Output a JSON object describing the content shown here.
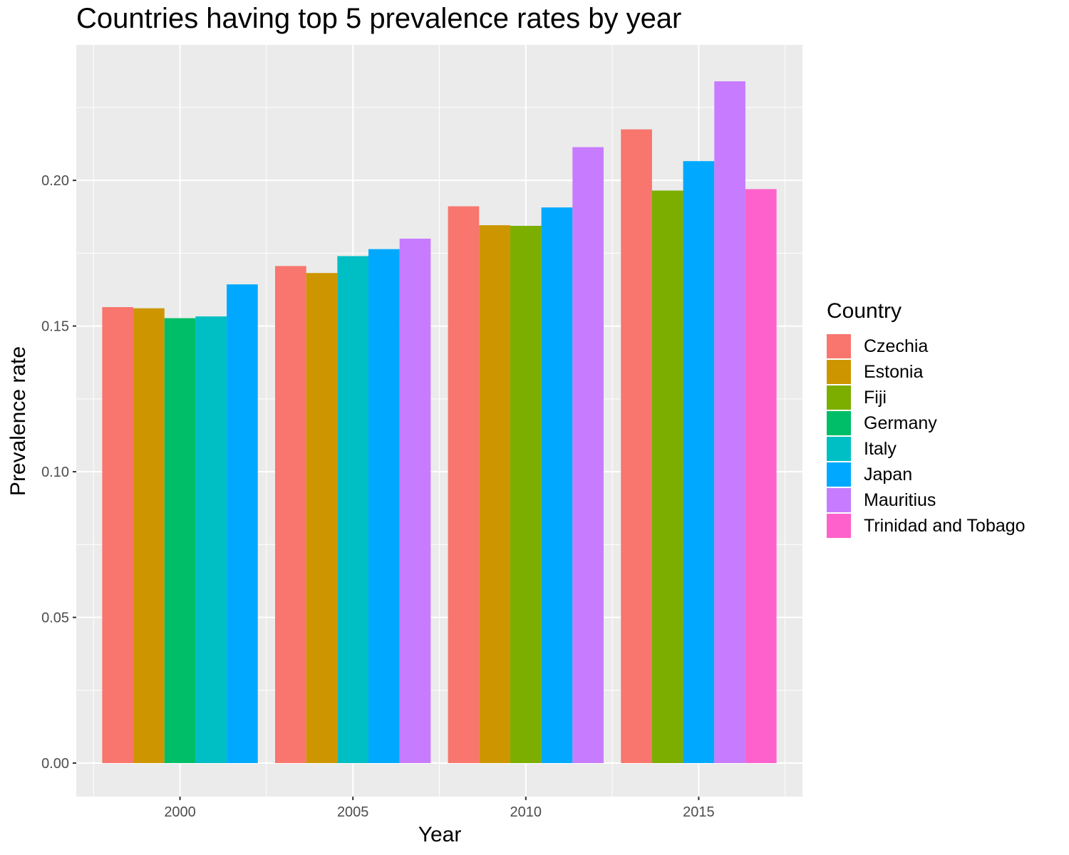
{
  "chart_data": {
    "type": "bar",
    "title": "Countries having top 5 prevalence rates by year",
    "xlabel": "Year",
    "ylabel": "Prevalence rate",
    "ylim": [
      -0.0115,
      0.2465
    ],
    "xlim": [
      1997.0,
      2018.0
    ],
    "y_ticks": [
      "0.00",
      "0.05",
      "0.10",
      "0.15",
      "0.20"
    ],
    "x_ticks": [
      "2000",
      "2005",
      "2010",
      "2015"
    ],
    "grid": true,
    "legend_position": "right",
    "legend_title": "Country",
    "bar_width_years": 4.5,
    "series": [
      {
        "name": "Czechia",
        "color": "#F8766D"
      },
      {
        "name": "Estonia",
        "color": "#CD9600"
      },
      {
        "name": "Fiji",
        "color": "#7CAE00"
      },
      {
        "name": "Germany",
        "color": "#00BE67"
      },
      {
        "name": "Italy",
        "color": "#00BFC4"
      },
      {
        "name": "Japan",
        "color": "#00A9FF"
      },
      {
        "name": "Mauritius",
        "color": "#C77CFF"
      },
      {
        "name": "Trinidad and Tobago",
        "color": "#FF61CC"
      }
    ],
    "groups": [
      {
        "year": 2000,
        "bars": [
          {
            "country": "Czechia",
            "value": 0.1565
          },
          {
            "country": "Estonia",
            "value": 0.1561
          },
          {
            "country": "Germany",
            "value": 0.1527
          },
          {
            "country": "Italy",
            "value": 0.1533
          },
          {
            "country": "Japan",
            "value": 0.1643
          }
        ]
      },
      {
        "year": 2005,
        "bars": [
          {
            "country": "Czechia",
            "value": 0.1706
          },
          {
            "country": "Estonia",
            "value": 0.1682
          },
          {
            "country": "Italy",
            "value": 0.174
          },
          {
            "country": "Japan",
            "value": 0.1764
          },
          {
            "country": "Mauritius",
            "value": 0.18
          }
        ]
      },
      {
        "year": 2010,
        "bars": [
          {
            "country": "Czechia",
            "value": 0.1911
          },
          {
            "country": "Estonia",
            "value": 0.1846
          },
          {
            "country": "Fiji",
            "value": 0.1844
          },
          {
            "country": "Japan",
            "value": 0.1907
          },
          {
            "country": "Mauritius",
            "value": 0.2114
          }
        ]
      },
      {
        "year": 2015,
        "bars": [
          {
            "country": "Czechia",
            "value": 0.2175
          },
          {
            "country": "Fiji",
            "value": 0.1965
          },
          {
            "country": "Japan",
            "value": 0.2066
          },
          {
            "country": "Mauritius",
            "value": 0.234
          },
          {
            "country": "Trinidad and Tobago",
            "value": 0.197
          }
        ]
      }
    ]
  }
}
